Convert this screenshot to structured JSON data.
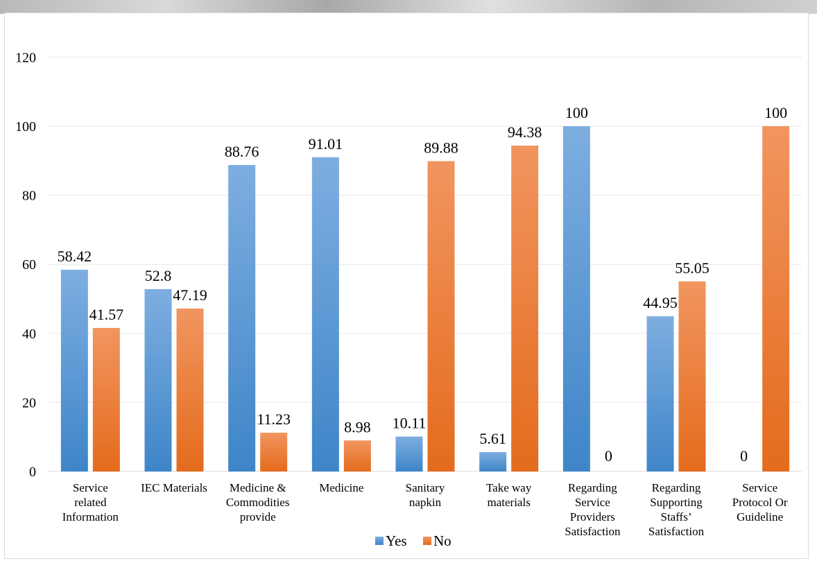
{
  "chart_data": {
    "type": "bar",
    "title": "",
    "xlabel": "",
    "ylabel": "",
    "ylim": [
      0,
      120
    ],
    "yticks": [
      0,
      20,
      40,
      60,
      80,
      100,
      120
    ],
    "grid": true,
    "legend_position": "bottom",
    "categories": [
      [
        "Service",
        "related",
        "Information"
      ],
      [
        "IEC Materials"
      ],
      [
        "Medicine &",
        "Commodities",
        "provide"
      ],
      [
        "Medicine"
      ],
      [
        "Sanitary",
        "napkin"
      ],
      [
        "Take way",
        "materials"
      ],
      [
        "Regarding",
        "Service",
        "Providers",
        "Satisfaction"
      ],
      [
        "Regarding",
        "Supporting",
        "Staffs’",
        "Satisfaction"
      ],
      [
        "Service",
        "Protocol Or",
        "Guideline"
      ]
    ],
    "series": [
      {
        "name": "Yes",
        "color": "#5b9bd5",
        "values": [
          58.42,
          52.8,
          88.76,
          91.01,
          10.11,
          5.61,
          100,
          44.95,
          0
        ],
        "labels": [
          "58.42",
          "52.8",
          "88.76",
          "91.01",
          "10.11",
          "5.61",
          "100",
          "44.95",
          "0"
        ]
      },
      {
        "name": "No",
        "color": "#ed7d31",
        "values": [
          41.57,
          47.19,
          11.23,
          8.98,
          89.88,
          94.38,
          0,
          55.05,
          100
        ],
        "labels": [
          "41.57",
          "47.19",
          "11.23",
          "8.98",
          "89.88",
          "94.38",
          "0",
          "55.05",
          "100"
        ]
      }
    ]
  }
}
